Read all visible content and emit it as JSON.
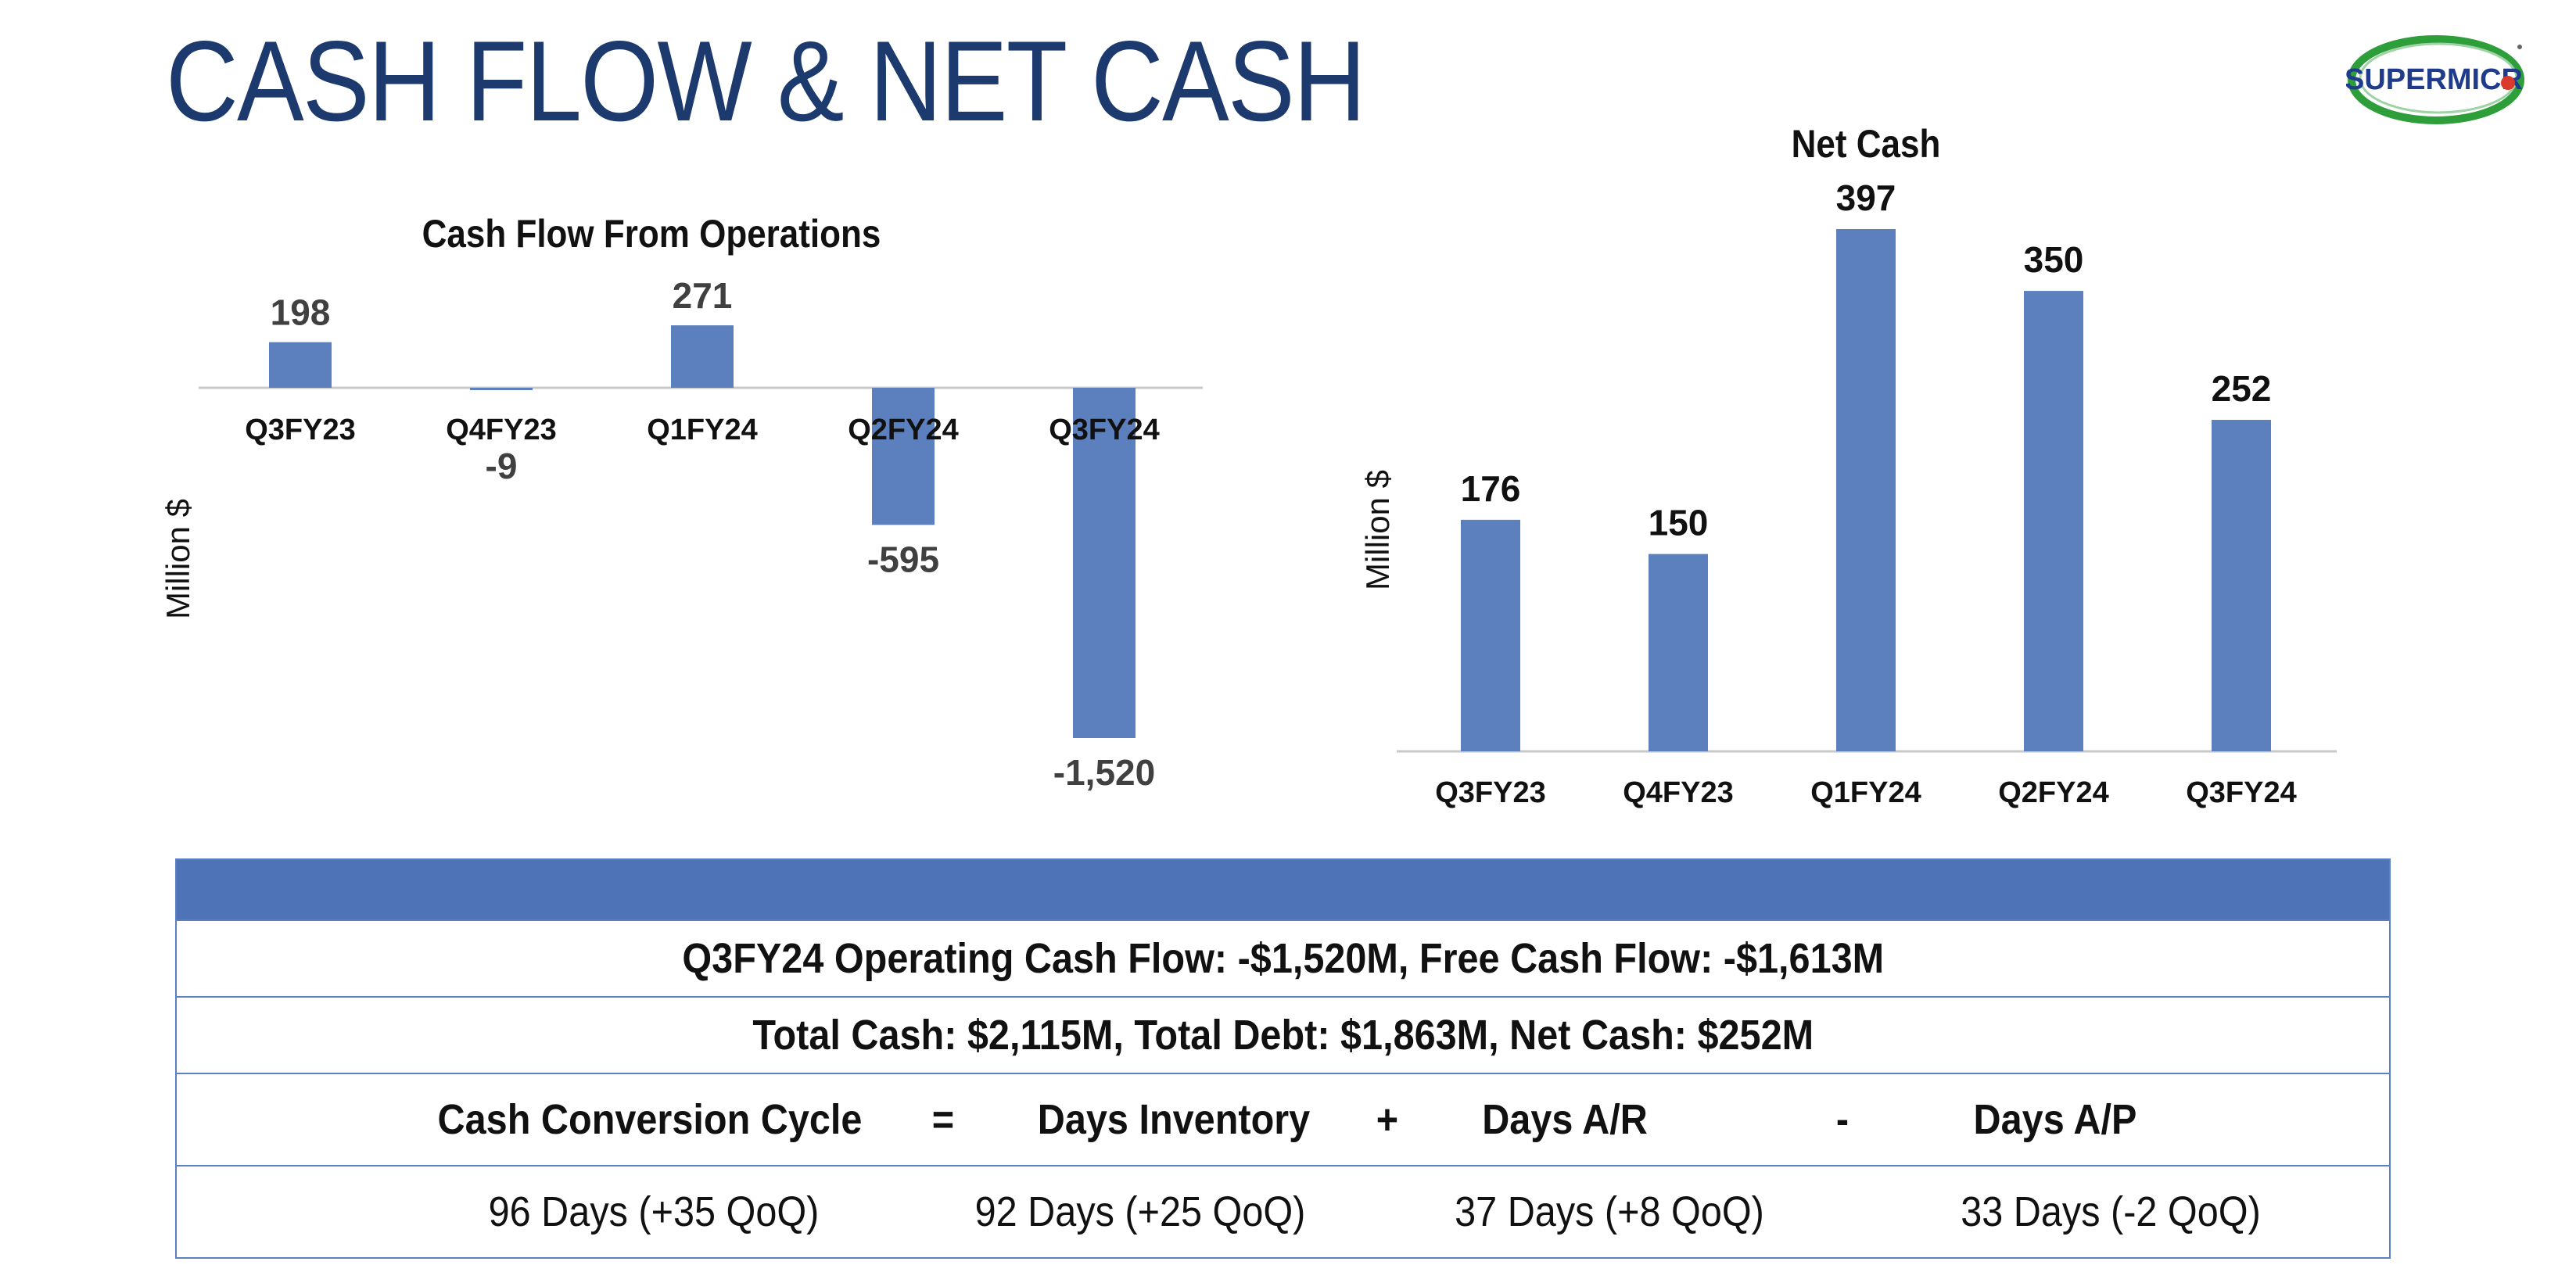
{
  "page_title": "CASH FLOW & NET CASH",
  "logo_text": "SUPERMICR",
  "colors": {
    "bar": "#5b80bd",
    "title": "#1c3a6e",
    "table_header": "#4f73b7",
    "logo_green": "#2e9e3a"
  },
  "chart_data": [
    {
      "type": "bar",
      "title": "Cash Flow From Operations",
      "ylabel": "Million $",
      "categories": [
        "Q3FY23",
        "Q4FY23",
        "Q1FY24",
        "Q2FY24",
        "Q3FY24"
      ],
      "values": [
        198,
        -9,
        271,
        -595,
        -1520
      ],
      "data_labels": [
        "198",
        "-9",
        "271",
        "-595",
        "-1,520"
      ],
      "ylim": [
        -1520,
        271
      ],
      "grid": false
    },
    {
      "type": "bar",
      "title": "Net Cash",
      "ylabel": "Million $",
      "categories": [
        "Q3FY23",
        "Q4FY23",
        "Q1FY24",
        "Q2FY24",
        "Q3FY24"
      ],
      "values": [
        176,
        150,
        397,
        350,
        252
      ],
      "data_labels": [
        "176",
        "150",
        "397",
        "350",
        "252"
      ],
      "ylim": [
        0,
        397
      ],
      "grid": false
    }
  ],
  "table": {
    "row1": "Q3FY24 Operating Cash Flow: -$1,520M, Free Cash Flow: -$1,613M",
    "row2": "Total Cash: $2,115M, Total Debt: $1,863M, Net Cash: $252M",
    "ccc_header": {
      "c1": "Cash Conversion Cycle",
      "op1": "=",
      "c2": "Days Inventory",
      "op2": "+",
      "c3": "Days A/R",
      "op3": "-",
      "c4": "Days A/P"
    },
    "ccc_values": {
      "c1": "96 Days (+35 QoQ)",
      "c2": "92 Days (+25 QoQ)",
      "c3": "37 Days (+8 QoQ)",
      "c4": "33 Days (-2 QoQ)"
    }
  }
}
